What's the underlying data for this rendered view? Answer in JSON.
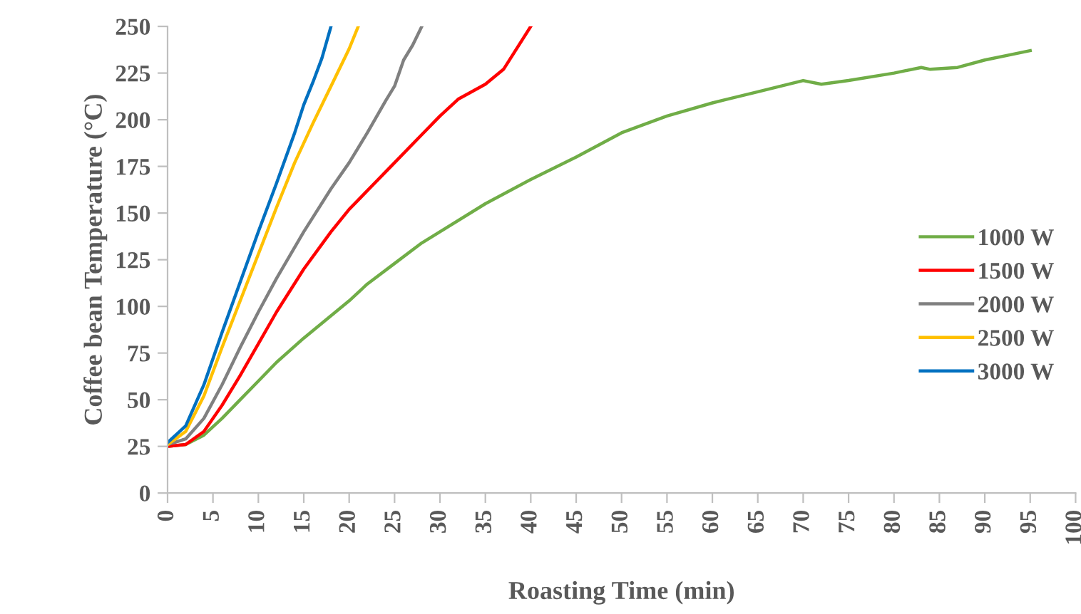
{
  "chart_data": {
    "type": "line",
    "xlabel": "Roasting Time (min)",
    "ylabel": "Coffee bean Temperature (°C)",
    "xlim": [
      0,
      100
    ],
    "xticks": [
      0,
      5,
      10,
      15,
      20,
      25,
      30,
      35,
      40,
      45,
      50,
      55,
      60,
      65,
      70,
      75,
      80,
      85,
      90,
      95,
      100
    ],
    "ylim": [
      0,
      250
    ],
    "yticks": [
      0,
      25,
      50,
      75,
      100,
      125,
      150,
      175,
      200,
      225,
      250
    ],
    "grid": false,
    "legend": "right",
    "marker": "none",
    "line_style": "solid",
    "series": [
      {
        "name": "1000 W",
        "color": "#70ad47",
        "x": [
          0,
          2,
          4,
          6,
          8,
          10,
          12,
          15,
          18,
          20,
          22,
          25,
          28,
          30,
          35,
          40,
          45,
          50,
          55,
          60,
          65,
          70,
          72,
          75,
          80,
          83,
          84,
          87,
          90,
          93,
          95
        ],
        "values": [
          25,
          26,
          31,
          40,
          50,
          60,
          70,
          83,
          95,
          103,
          112,
          123,
          134,
          140,
          155,
          168,
          180,
          193,
          202,
          209,
          215,
          221,
          219,
          221,
          225,
          228,
          227,
          228,
          232,
          235,
          237
        ]
      },
      {
        "name": "1500 W",
        "color": "#ff0000",
        "x": [
          0,
          2,
          4,
          6,
          8,
          10,
          12,
          15,
          18,
          20,
          25,
          28,
          30,
          32,
          35,
          37,
          40
        ],
        "values": [
          25,
          26,
          33,
          47,
          63,
          80,
          97,
          120,
          140,
          152,
          177,
          192,
          202,
          211,
          219,
          227,
          250
        ]
      },
      {
        "name": "2000 W",
        "color": "#808080",
        "x": [
          0,
          2,
          4,
          6,
          8,
          10,
          12,
          15,
          18,
          20,
          22,
          24,
          25,
          26,
          27,
          28
        ],
        "values": [
          26,
          29,
          40,
          58,
          78,
          97,
          115,
          140,
          163,
          177,
          193,
          210,
          218,
          232,
          240,
          250
        ]
      },
      {
        "name": "2500 W",
        "color": "#ffc000",
        "x": [
          0,
          2,
          4,
          6,
          8,
          10,
          12,
          14,
          16,
          18,
          20,
          21
        ],
        "values": [
          26,
          33,
          52,
          78,
          103,
          128,
          153,
          177,
          198,
          218,
          238,
          250
        ]
      },
      {
        "name": "3000 W",
        "color": "#0070c0",
        "x": [
          0,
          2,
          4,
          6,
          8,
          10,
          12,
          14,
          15,
          16,
          17,
          18
        ],
        "values": [
          27,
          36,
          58,
          86,
          113,
          140,
          166,
          193,
          208,
          220,
          233,
          250
        ]
      }
    ]
  }
}
